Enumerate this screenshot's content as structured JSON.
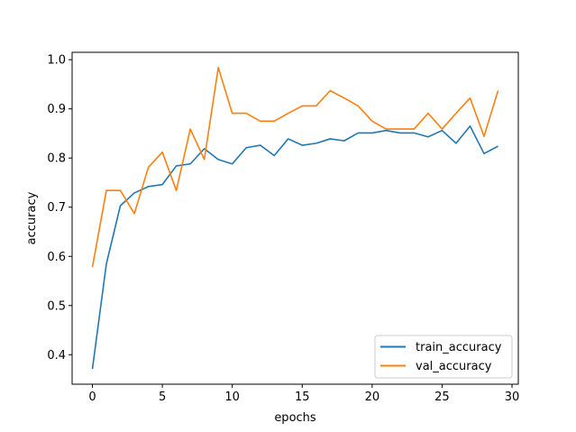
{
  "chart_data": {
    "type": "line",
    "title": "",
    "xlabel": "epochs",
    "ylabel": "accuracy",
    "xlim": [
      -1.45,
      30.45
    ],
    "ylim": [
      0.34,
      1.015
    ],
    "xticks": [
      0,
      5,
      10,
      15,
      20,
      25,
      30
    ],
    "yticks": [
      0.4,
      0.5,
      0.6,
      0.7,
      0.8,
      0.9,
      1.0
    ],
    "grid": false,
    "legend_position": "lower-right",
    "series": [
      {
        "name": "train_accuracy",
        "color": "#1f77b4",
        "x": [
          0,
          1,
          2,
          3,
          4,
          5,
          6,
          7,
          8,
          9,
          10,
          11,
          12,
          13,
          14,
          15,
          16,
          17,
          18,
          19,
          20,
          21,
          22,
          23,
          24,
          25,
          26,
          27,
          28,
          29
        ],
        "y": [
          0.371,
          0.585,
          0.703,
          0.729,
          0.742,
          0.746,
          0.784,
          0.788,
          0.819,
          0.797,
          0.788,
          0.821,
          0.826,
          0.805,
          0.839,
          0.826,
          0.83,
          0.839,
          0.835,
          0.851,
          0.851,
          0.856,
          0.851,
          0.851,
          0.843,
          0.856,
          0.83,
          0.865,
          0.809,
          0.824
        ]
      },
      {
        "name": "val_accuracy",
        "color": "#ff7f0e",
        "x": [
          0,
          1,
          2,
          3,
          4,
          5,
          6,
          7,
          8,
          9,
          10,
          11,
          12,
          13,
          14,
          15,
          16,
          17,
          18,
          19,
          20,
          21,
          22,
          23,
          24,
          25,
          26,
          27,
          28,
          29
        ],
        "y": [
          0.578,
          0.734,
          0.734,
          0.687,
          0.781,
          0.812,
          0.734,
          0.859,
          0.797,
          0.984,
          0.891,
          0.891,
          0.875,
          0.875,
          0.891,
          0.906,
          0.906,
          0.937,
          0.922,
          0.906,
          0.875,
          0.859,
          0.859,
          0.859,
          0.891,
          0.859,
          0.891,
          0.922,
          0.844,
          0.937
        ]
      }
    ]
  }
}
